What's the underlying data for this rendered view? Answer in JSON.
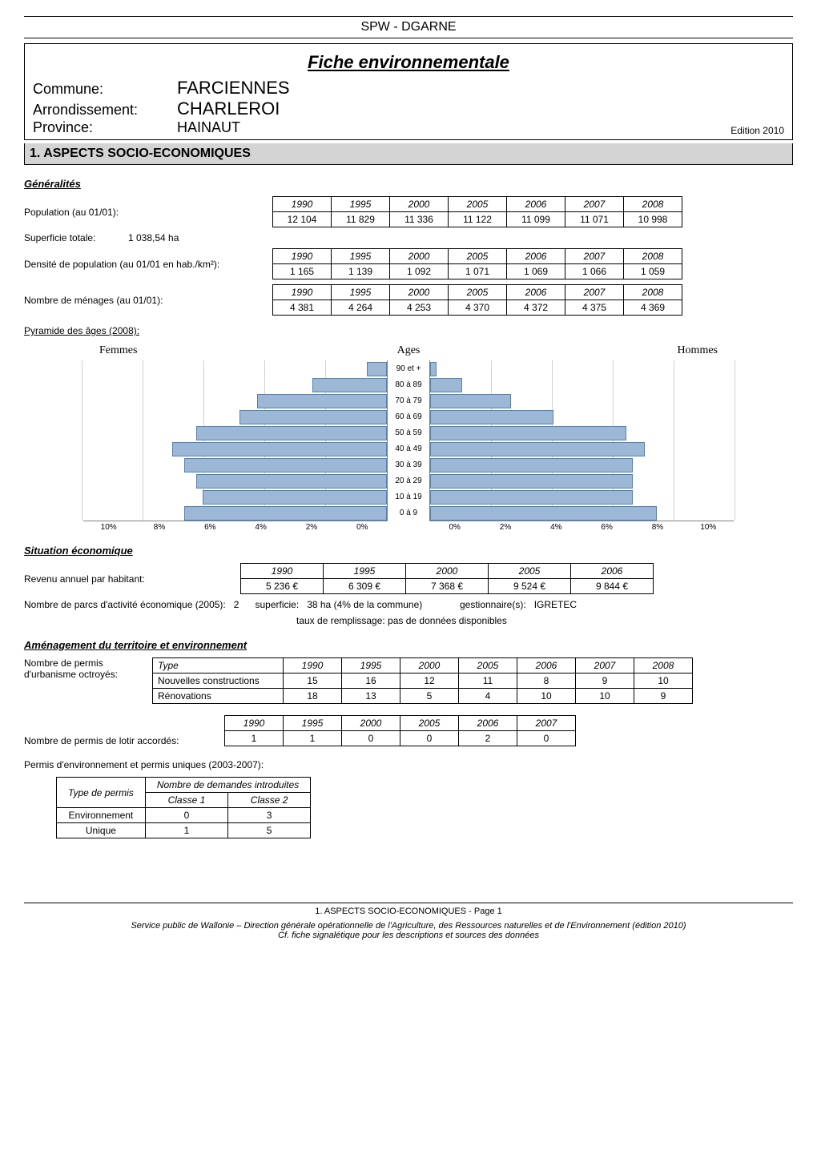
{
  "header": {
    "agency": "SPW - DGARNE",
    "title": "Fiche environnementale",
    "commune_label": "Commune:",
    "commune": "FARCIENNES",
    "arrondissement_label": "Arrondissement:",
    "arrondissement": "CHARLEROI",
    "province_label": "Province:",
    "province": "HAINAUT",
    "edition": "Edition  2010"
  },
  "section1": {
    "title": "1. ASPECTS SOCIO-ECONOMIQUES",
    "generalites": "Généralités",
    "population_label": "Population (au 01/01):",
    "population": {
      "years": [
        "1990",
        "1995",
        "2000",
        "2005",
        "2006",
        "2007",
        "2008"
      ],
      "values": [
        "12 104",
        "11 829",
        "11 336",
        "11 122",
        "11 099",
        "11 071",
        "10 998"
      ]
    },
    "superficie_label": "Superficie totale:",
    "superficie_value": "1 038,54 ha",
    "densite_label": "Densité de population (au 01/01 en hab./km²):",
    "densite": {
      "years": [
        "1990",
        "1995",
        "2000",
        "2005",
        "2006",
        "2007",
        "2008"
      ],
      "values": [
        "1 165",
        "1 139",
        "1 092",
        "1 071",
        "1 069",
        "1 066",
        "1 059"
      ]
    },
    "menages_label": "Nombre de ménages (au 01/01):",
    "menages": {
      "years": [
        "1990",
        "1995",
        "2000",
        "2005",
        "2006",
        "2007",
        "2008"
      ],
      "values": [
        "4 381",
        "4 264",
        "4 253",
        "4 370",
        "4 372",
        "4 375",
        "4 369"
      ]
    },
    "pyramide_label": "Pyramide des âges (2008):",
    "pyramid": {
      "type": "population-pyramid",
      "left_title": "Femmes",
      "right_title": "Hommes",
      "center_title": "Ages",
      "age_labels": [
        "90 et +",
        "80 à 89",
        "70 à 79",
        "60 à 69",
        "50 à 59",
        "40 à 49",
        "30 à 39",
        "20 à 29",
        "10 à 19",
        "0 à 9"
      ],
      "femmes_pct": [
        0.6,
        2.4,
        4.2,
        4.8,
        6.2,
        7.0,
        6.6,
        6.2,
        6.0,
        6.6
      ],
      "hommes_pct": [
        0.15,
        1.0,
        2.6,
        4.0,
        6.4,
        7.0,
        6.6,
        6.6,
        6.6,
        7.4
      ],
      "x_ticks_left": [
        "10%",
        "8%",
        "6%",
        "4%",
        "2%",
        "0%"
      ],
      "x_ticks_right": [
        "0%",
        "2%",
        "4%",
        "6%",
        "8%",
        "10%"
      ],
      "x_max": 10,
      "bar_fill": "#9db8d6",
      "bar_border": "#5b7fa6",
      "gridline_color": "#d0d0d0"
    }
  },
  "situation": {
    "heading": "Situation économique",
    "revenu_label": "Revenu annuel par habitant:",
    "revenu": {
      "years": [
        "1990",
        "1995",
        "2000",
        "2005",
        "2006"
      ],
      "values": [
        "5 236 €",
        "6 309 €",
        "7 368 €",
        "9 524 €",
        "9 844 €"
      ]
    },
    "parcs_line_prefix": "Nombre de parcs d'activité économique (2005):",
    "parcs_count": "2",
    "superficie_prefix": "superficie:",
    "superficie_val": "38 ha (4% de la commune)",
    "gestion_prefix": "gestionnaire(s):",
    "gestion_val": "IGRETEC",
    "taux_line": "taux de remplissage:  pas de données disponibles"
  },
  "amenagement": {
    "heading": "Aménagement du territoire et environnement",
    "permis_urb_label_line1": "Nombre de permis",
    "permis_urb_label_line2": "d'urbanisme octroyés:",
    "urb_table": {
      "type_header": "Type",
      "years": [
        "1990",
        "1995",
        "2000",
        "2005",
        "2006",
        "2007",
        "2008"
      ],
      "rows": [
        {
          "type": "Nouvelles constructions",
          "vals": [
            "15",
            "16",
            "12",
            "11",
            "8",
            "9",
            "10"
          ]
        },
        {
          "type": "Rénovations",
          "vals": [
            "18",
            "13",
            "5",
            "4",
            "10",
            "10",
            "9"
          ]
        }
      ]
    },
    "lotir_label": "Nombre de permis de lotir accordés:",
    "lotir": {
      "years": [
        "1990",
        "1995",
        "2000",
        "2005",
        "2006",
        "2007"
      ],
      "values": [
        "1",
        "1",
        "0",
        "0",
        "2",
        "0"
      ]
    },
    "env_permis_label": "Permis d'environnement et permis uniques (2003-2007):",
    "env_table": {
      "col1": "Type de permis",
      "col2": "Nombre de demandes  introduites",
      "sub1": "Classe 1",
      "sub2": "Classe 2",
      "rows": [
        {
          "type": "Environnement",
          "c1": "0",
          "c2": "3"
        },
        {
          "type": "Unique",
          "c1": "1",
          "c2": "5"
        }
      ]
    }
  },
  "footer": {
    "page_line": "1. ASPECTS SOCIO-ECONOMIQUES - Page 1",
    "line2": "Service public de Wallonie – Direction générale opérationnelle de l'Agriculture, des Ressources naturelles et de l'Environnement (édition 2010)",
    "line3": "Cf. fiche signalétique pour les descriptions et sources des données"
  }
}
